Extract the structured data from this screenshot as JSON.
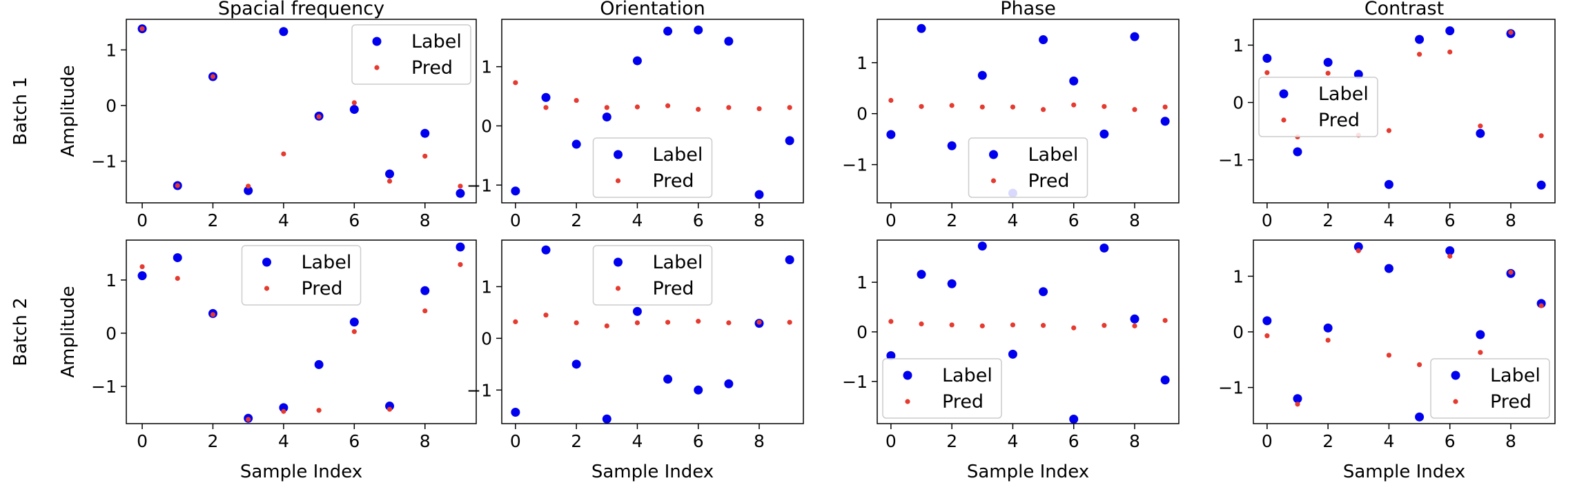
{
  "figure": {
    "row_labels": [
      "Batch 1",
      "Batch 2"
    ],
    "ylabel": "Amplitude",
    "xlabel": "Sample Index"
  },
  "colors": {
    "label": "#0000ee",
    "pred": "#e53a2f",
    "legend_border": "#cccccc"
  },
  "legend_entries": [
    "Label",
    "Pred"
  ],
  "chart_data": [
    {
      "type": "scatter",
      "row": 1,
      "col": 1,
      "title": "Spacial frequency",
      "xlim": [
        -0.45,
        9.45
      ],
      "ylim": [
        -1.75,
        1.55
      ],
      "xticks": [
        0,
        2,
        4,
        6,
        8
      ],
      "yticks": [
        -1,
        0,
        1
      ],
      "legend": "upper right",
      "x": [
        0,
        1,
        2,
        3,
        4,
        5,
        6,
        7,
        8,
        9
      ],
      "series": [
        {
          "name": "Label",
          "values": [
            1.38,
            -1.44,
            0.52,
            -1.53,
            1.33,
            -0.19,
            -0.07,
            -1.23,
            -0.5,
            -1.58
          ]
        },
        {
          "name": "Pred",
          "values": [
            1.38,
            -1.44,
            0.52,
            -1.45,
            -0.87,
            -0.2,
            0.05,
            -1.36,
            -0.91,
            -1.45
          ]
        }
      ]
    },
    {
      "type": "scatter",
      "row": 1,
      "col": 2,
      "title": "Orientation",
      "xlim": [
        -0.45,
        9.45
      ],
      "ylim": [
        -1.3,
        1.8
      ],
      "xticks": [
        0,
        2,
        4,
        6,
        8
      ],
      "yticks": [
        -1,
        0,
        1
      ],
      "legend": "lower center",
      "x": [
        0,
        1,
        2,
        3,
        4,
        5,
        6,
        7,
        8,
        9
      ],
      "series": [
        {
          "name": "Label",
          "values": [
            -1.1,
            0.48,
            -0.31,
            0.15,
            1.1,
            1.6,
            1.62,
            1.43,
            -1.16,
            -0.25
          ]
        },
        {
          "name": "Pred",
          "values": [
            0.73,
            0.31,
            0.43,
            0.31,
            0.32,
            0.34,
            0.28,
            0.31,
            0.29,
            0.31
          ]
        }
      ]
    },
    {
      "type": "scatter",
      "row": 1,
      "col": 3,
      "title": "Phase",
      "xlim": [
        -0.45,
        9.45
      ],
      "ylim": [
        -1.75,
        1.85
      ],
      "xticks": [
        0,
        2,
        4,
        6,
        8
      ],
      "yticks": [
        -1,
        0,
        1
      ],
      "legend": "lower center",
      "x": [
        0,
        1,
        2,
        3,
        4,
        5,
        6,
        7,
        8,
        9
      ],
      "series": [
        {
          "name": "Label",
          "values": [
            -0.41,
            1.67,
            -0.63,
            0.75,
            -1.56,
            1.45,
            0.64,
            -0.4,
            1.51,
            -0.15
          ]
        },
        {
          "name": "Pred",
          "values": [
            0.26,
            0.14,
            0.16,
            0.13,
            0.13,
            0.08,
            0.17,
            0.14,
            0.08,
            0.13
          ]
        }
      ]
    },
    {
      "type": "scatter",
      "row": 1,
      "col": 4,
      "title": "Contrast",
      "xlim": [
        -0.45,
        9.45
      ],
      "ylim": [
        -1.75,
        1.45
      ],
      "xticks": [
        0,
        2,
        4,
        6,
        8
      ],
      "yticks": [
        -1,
        0,
        1
      ],
      "legend": "center left",
      "x": [
        0,
        1,
        2,
        3,
        4,
        5,
        6,
        7,
        8,
        9
      ],
      "series": [
        {
          "name": "Label",
          "values": [
            0.77,
            -0.86,
            0.7,
            0.49,
            -1.43,
            1.1,
            1.25,
            -0.54,
            1.2,
            -1.44
          ]
        },
        {
          "name": "Pred",
          "values": [
            0.52,
            -0.6,
            0.51,
            -0.57,
            -0.49,
            0.84,
            0.88,
            -0.41,
            1.22,
            -0.58
          ]
        }
      ]
    },
    {
      "type": "scatter",
      "row": 2,
      "col": 1,
      "title": "",
      "xlim": [
        -0.45,
        9.45
      ],
      "ylim": [
        -1.7,
        1.75
      ],
      "xticks": [
        0,
        2,
        4,
        6,
        8
      ],
      "yticks": [
        -1,
        0,
        1
      ],
      "legend": "upper center",
      "x": [
        0,
        1,
        2,
        3,
        4,
        5,
        6,
        7,
        8,
        9
      ],
      "series": [
        {
          "name": "Label",
          "values": [
            1.08,
            1.42,
            0.37,
            -1.6,
            -1.4,
            -0.59,
            0.21,
            -1.37,
            0.8,
            1.62
          ]
        },
        {
          "name": "Pred",
          "values": [
            1.25,
            1.03,
            0.35,
            -1.62,
            -1.47,
            -1.45,
            0.03,
            -1.43,
            0.42,
            1.29
          ]
        }
      ]
    },
    {
      "type": "scatter",
      "row": 2,
      "col": 2,
      "title": "",
      "xlim": [
        -0.45,
        9.45
      ],
      "ylim": [
        -1.65,
        1.9
      ],
      "xticks": [
        0,
        2,
        4,
        6,
        8
      ],
      "yticks": [
        -1,
        0,
        1
      ],
      "legend": "upper center",
      "x": [
        0,
        1,
        2,
        3,
        4,
        5,
        6,
        7,
        8,
        9
      ],
      "series": [
        {
          "name": "Label",
          "values": [
            -1.43,
            1.71,
            -0.5,
            -1.56,
            0.52,
            -0.79,
            -1.0,
            -0.88,
            0.29,
            1.52
          ]
        },
        {
          "name": "Pred",
          "values": [
            0.32,
            0.45,
            0.3,
            0.24,
            0.3,
            0.31,
            0.33,
            0.3,
            0.31,
            0.31
          ]
        }
      ]
    },
    {
      "type": "scatter",
      "row": 2,
      "col": 3,
      "title": "",
      "xlim": [
        -0.45,
        9.45
      ],
      "ylim": [
        -1.85,
        1.85
      ],
      "xticks": [
        0,
        2,
        4,
        6,
        8
      ],
      "yticks": [
        -1,
        0,
        1
      ],
      "legend": "lower left",
      "x": [
        0,
        1,
        2,
        3,
        4,
        5,
        6,
        7,
        8,
        9
      ],
      "series": [
        {
          "name": "Label",
          "values": [
            -0.48,
            1.16,
            0.97,
            1.73,
            -0.45,
            0.81,
            -1.76,
            1.69,
            0.26,
            -0.97
          ]
        },
        {
          "name": "Pred",
          "values": [
            0.21,
            0.16,
            0.14,
            0.12,
            0.14,
            0.13,
            0.08,
            0.13,
            0.12,
            0.23
          ]
        }
      ]
    },
    {
      "type": "scatter",
      "row": 2,
      "col": 4,
      "title": "",
      "xlim": [
        -0.45,
        9.45
      ],
      "ylim": [
        -1.65,
        1.65
      ],
      "xticks": [
        0,
        2,
        4,
        6,
        8
      ],
      "yticks": [
        -1,
        0,
        1
      ],
      "legend": "lower right",
      "x": [
        0,
        1,
        2,
        3,
        4,
        5,
        6,
        7,
        8,
        9
      ],
      "series": [
        {
          "name": "Label",
          "values": [
            0.2,
            -1.2,
            0.07,
            1.53,
            1.14,
            -1.53,
            1.46,
            -0.05,
            1.05,
            0.51
          ]
        },
        {
          "name": "Pred",
          "values": [
            -0.07,
            -1.3,
            -0.15,
            1.46,
            -0.42,
            -0.59,
            1.36,
            -0.37,
            1.07,
            0.47
          ]
        }
      ]
    }
  ]
}
